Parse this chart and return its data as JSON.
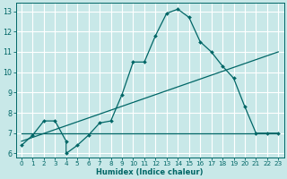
{
  "xlabel": "Humidex (Indice chaleur)",
  "bg_color": "#c8e8e8",
  "grid_color": "#ffffff",
  "line_color": "#006666",
  "xlim": [
    -0.5,
    23.5
  ],
  "ylim": [
    5.8,
    13.4
  ],
  "xticks": [
    0,
    1,
    2,
    3,
    4,
    5,
    6,
    7,
    8,
    9,
    10,
    11,
    12,
    13,
    14,
    15,
    16,
    17,
    18,
    19,
    20,
    21,
    22,
    23
  ],
  "yticks": [
    6,
    7,
    8,
    9,
    10,
    11,
    12,
    13
  ],
  "line1_x": [
    0,
    1,
    2,
    3,
    4,
    4,
    5,
    6,
    7,
    8,
    9,
    10,
    11,
    12,
    13,
    14,
    15,
    16,
    17,
    18,
    19,
    20,
    21,
    22,
    23
  ],
  "line1_y": [
    6.4,
    6.9,
    7.6,
    7.6,
    6.6,
    6.0,
    6.4,
    6.9,
    7.5,
    7.6,
    8.9,
    10.5,
    10.5,
    11.8,
    12.9,
    13.1,
    12.7,
    11.5,
    11.0,
    10.3,
    9.7,
    8.3,
    7.0,
    7.0,
    7.0
  ],
  "line2_x": [
    0,
    23
  ],
  "line2_y": [
    6.6,
    11.0
  ],
  "line3_x": [
    0,
    23
  ],
  "line3_y": [
    7.0,
    7.0
  ],
  "xlabel_fontsize": 6.0,
  "tick_fontsize": 5.2,
  "ytick_fontsize": 5.8
}
